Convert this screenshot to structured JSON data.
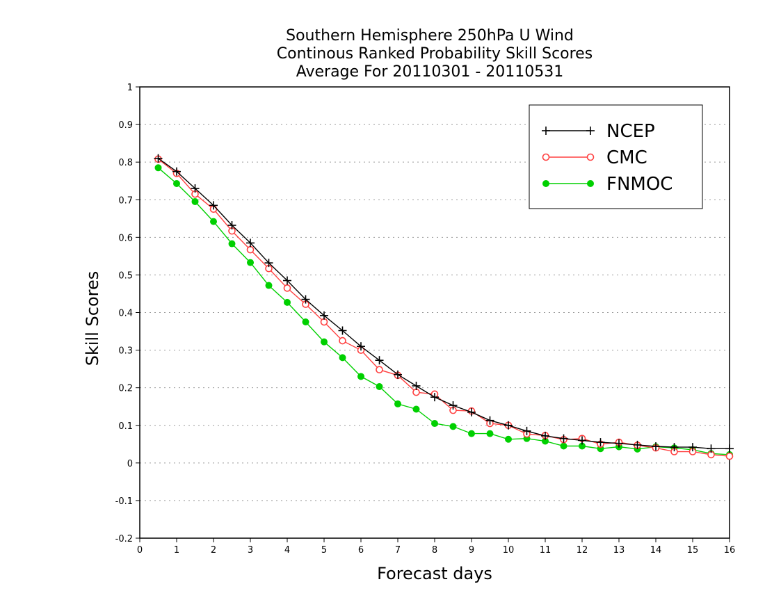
{
  "chart_data": {
    "type": "line",
    "title_lines": [
      "Southern Hemisphere 250hPa U Wind",
      "Continous Ranked Probability Skill Scores",
      "Average For 20110301 - 20110531"
    ],
    "xlabel": "Forecast days",
    "ylabel": "Skill Scores",
    "xlim": [
      0,
      16
    ],
    "ylim": [
      -0.2,
      1
    ],
    "xticks": [
      "0",
      "1",
      "2",
      "3",
      "4",
      "5",
      "6",
      "7",
      "8",
      "9",
      "10",
      "11",
      "12",
      "13",
      "14",
      "15",
      "16"
    ],
    "yticks": [
      "-0.2",
      "-0.1",
      "0",
      "0.1",
      "0.2",
      "0.3",
      "0.4",
      "0.5",
      "0.6",
      "0.7",
      "0.8",
      "0.9",
      "1"
    ],
    "grid": "horizontal dotted",
    "legend_position": "top-right",
    "x": [
      0.5,
      1,
      1.5,
      2,
      2.5,
      3,
      3.5,
      4,
      4.5,
      5,
      5.5,
      6,
      6.5,
      7,
      7.5,
      8,
      8.5,
      9,
      9.5,
      10,
      10.5,
      11,
      11.5,
      12,
      12.5,
      13,
      13.5,
      14,
      14.5,
      15,
      15.5,
      16
    ],
    "series": [
      {
        "name": "NCEP",
        "color": "#000000",
        "marker": "plus",
        "values": [
          0.81,
          0.775,
          0.73,
          0.685,
          0.632,
          0.585,
          0.532,
          0.485,
          0.435,
          0.392,
          0.352,
          0.31,
          0.273,
          0.235,
          0.205,
          0.175,
          0.153,
          0.135,
          0.113,
          0.1,
          0.085,
          0.072,
          0.065,
          0.06,
          0.055,
          0.052,
          0.048,
          0.044,
          0.042,
          0.042,
          0.038,
          0.038
        ]
      },
      {
        "name": "CMC",
        "color": "#ff4040",
        "marker": "open-circle",
        "values": [
          0.808,
          0.77,
          0.715,
          0.675,
          0.617,
          0.567,
          0.517,
          0.465,
          0.422,
          0.375,
          0.325,
          0.3,
          0.248,
          0.233,
          0.188,
          0.183,
          0.14,
          0.138,
          0.105,
          0.1,
          0.077,
          0.073,
          0.062,
          0.065,
          0.05,
          0.055,
          0.047,
          0.04,
          0.03,
          0.03,
          0.022,
          0.018
        ]
      },
      {
        "name": "FNMOC",
        "color": "#00d000",
        "marker": "filled-circle",
        "values": [
          0.785,
          0.743,
          0.695,
          0.642,
          0.583,
          0.533,
          0.472,
          0.427,
          0.375,
          0.322,
          0.28,
          0.23,
          0.203,
          0.157,
          0.143,
          0.105,
          0.097,
          0.078,
          0.078,
          0.063,
          0.065,
          0.058,
          0.045,
          0.045,
          0.038,
          0.043,
          0.037,
          0.043,
          0.04,
          0.035,
          0.025,
          0.022
        ]
      }
    ]
  }
}
